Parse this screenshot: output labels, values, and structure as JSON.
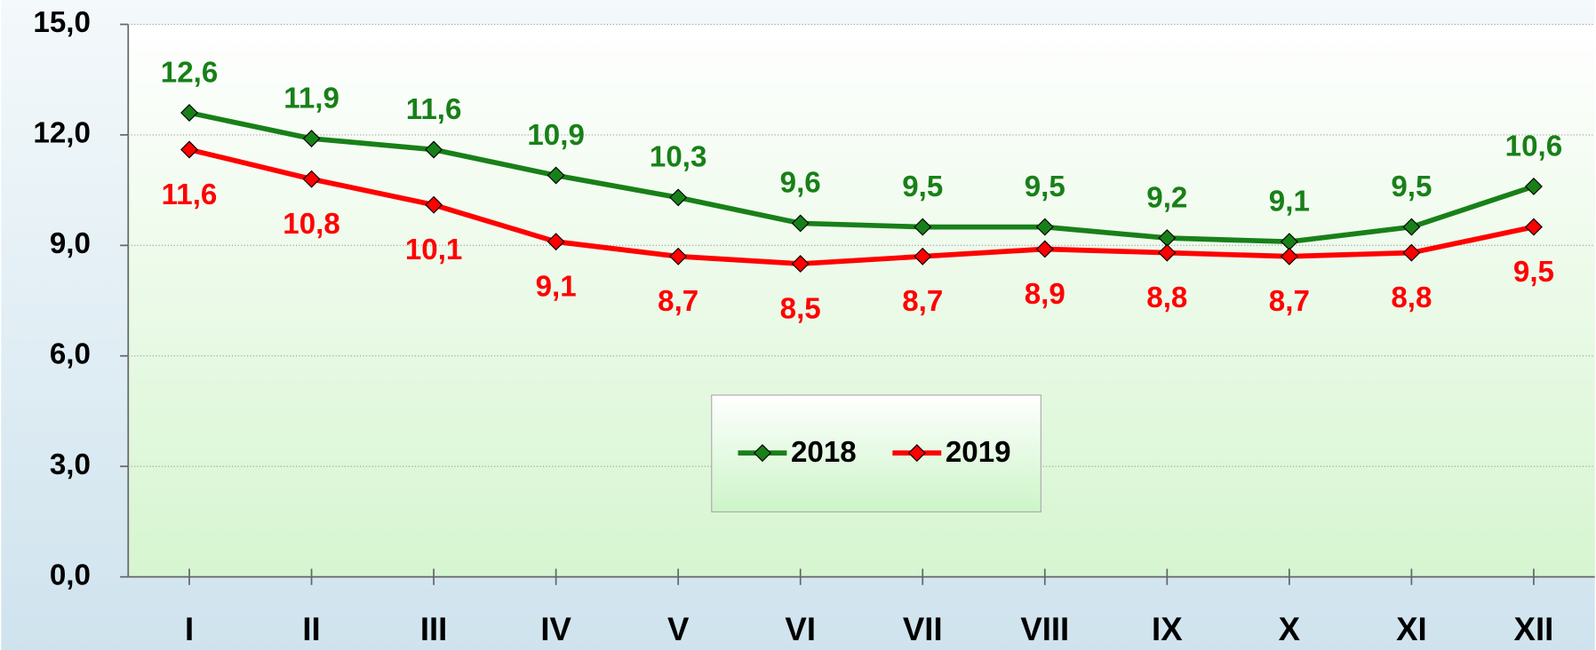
{
  "chart_data": {
    "type": "line",
    "categories": [
      "I",
      "II",
      "III",
      "IV",
      "V",
      "VI",
      "VII",
      "VIII",
      "IX",
      "X",
      "XI",
      "XII"
    ],
    "series": [
      {
        "name": "2018",
        "color": "#188018",
        "values": [
          12.6,
          11.9,
          11.6,
          10.9,
          10.3,
          9.6,
          9.5,
          9.5,
          9.2,
          9.1,
          9.5,
          10.6
        ],
        "value_labels": [
          "12,6",
          "11,9",
          "11,6",
          "10,9",
          "10,3",
          "9,6",
          "9,5",
          "9,5",
          "9,2",
          "9,1",
          "9,5",
          "10,6"
        ]
      },
      {
        "name": "2019",
        "color": "#ff0000",
        "values": [
          11.6,
          10.8,
          10.1,
          9.1,
          8.7,
          8.5,
          8.7,
          8.9,
          8.8,
          8.7,
          8.8,
          9.5
        ],
        "value_labels": [
          "11,6",
          "10,8",
          "10,1",
          "9,1",
          "8,7",
          "8,5",
          "8,7",
          "8,9",
          "8,8",
          "8,7",
          "8,8",
          "9,5"
        ]
      }
    ],
    "ylim": [
      0,
      15
    ],
    "yticks": [
      {
        "value": 0,
        "label": "0,0"
      },
      {
        "value": 3,
        "label": "3,0"
      },
      {
        "value": 6,
        "label": "6,0"
      },
      {
        "value": 9,
        "label": "9,0"
      },
      {
        "value": 12,
        "label": "12,0"
      },
      {
        "value": 15,
        "label": "15,0"
      }
    ],
    "grid": true
  }
}
